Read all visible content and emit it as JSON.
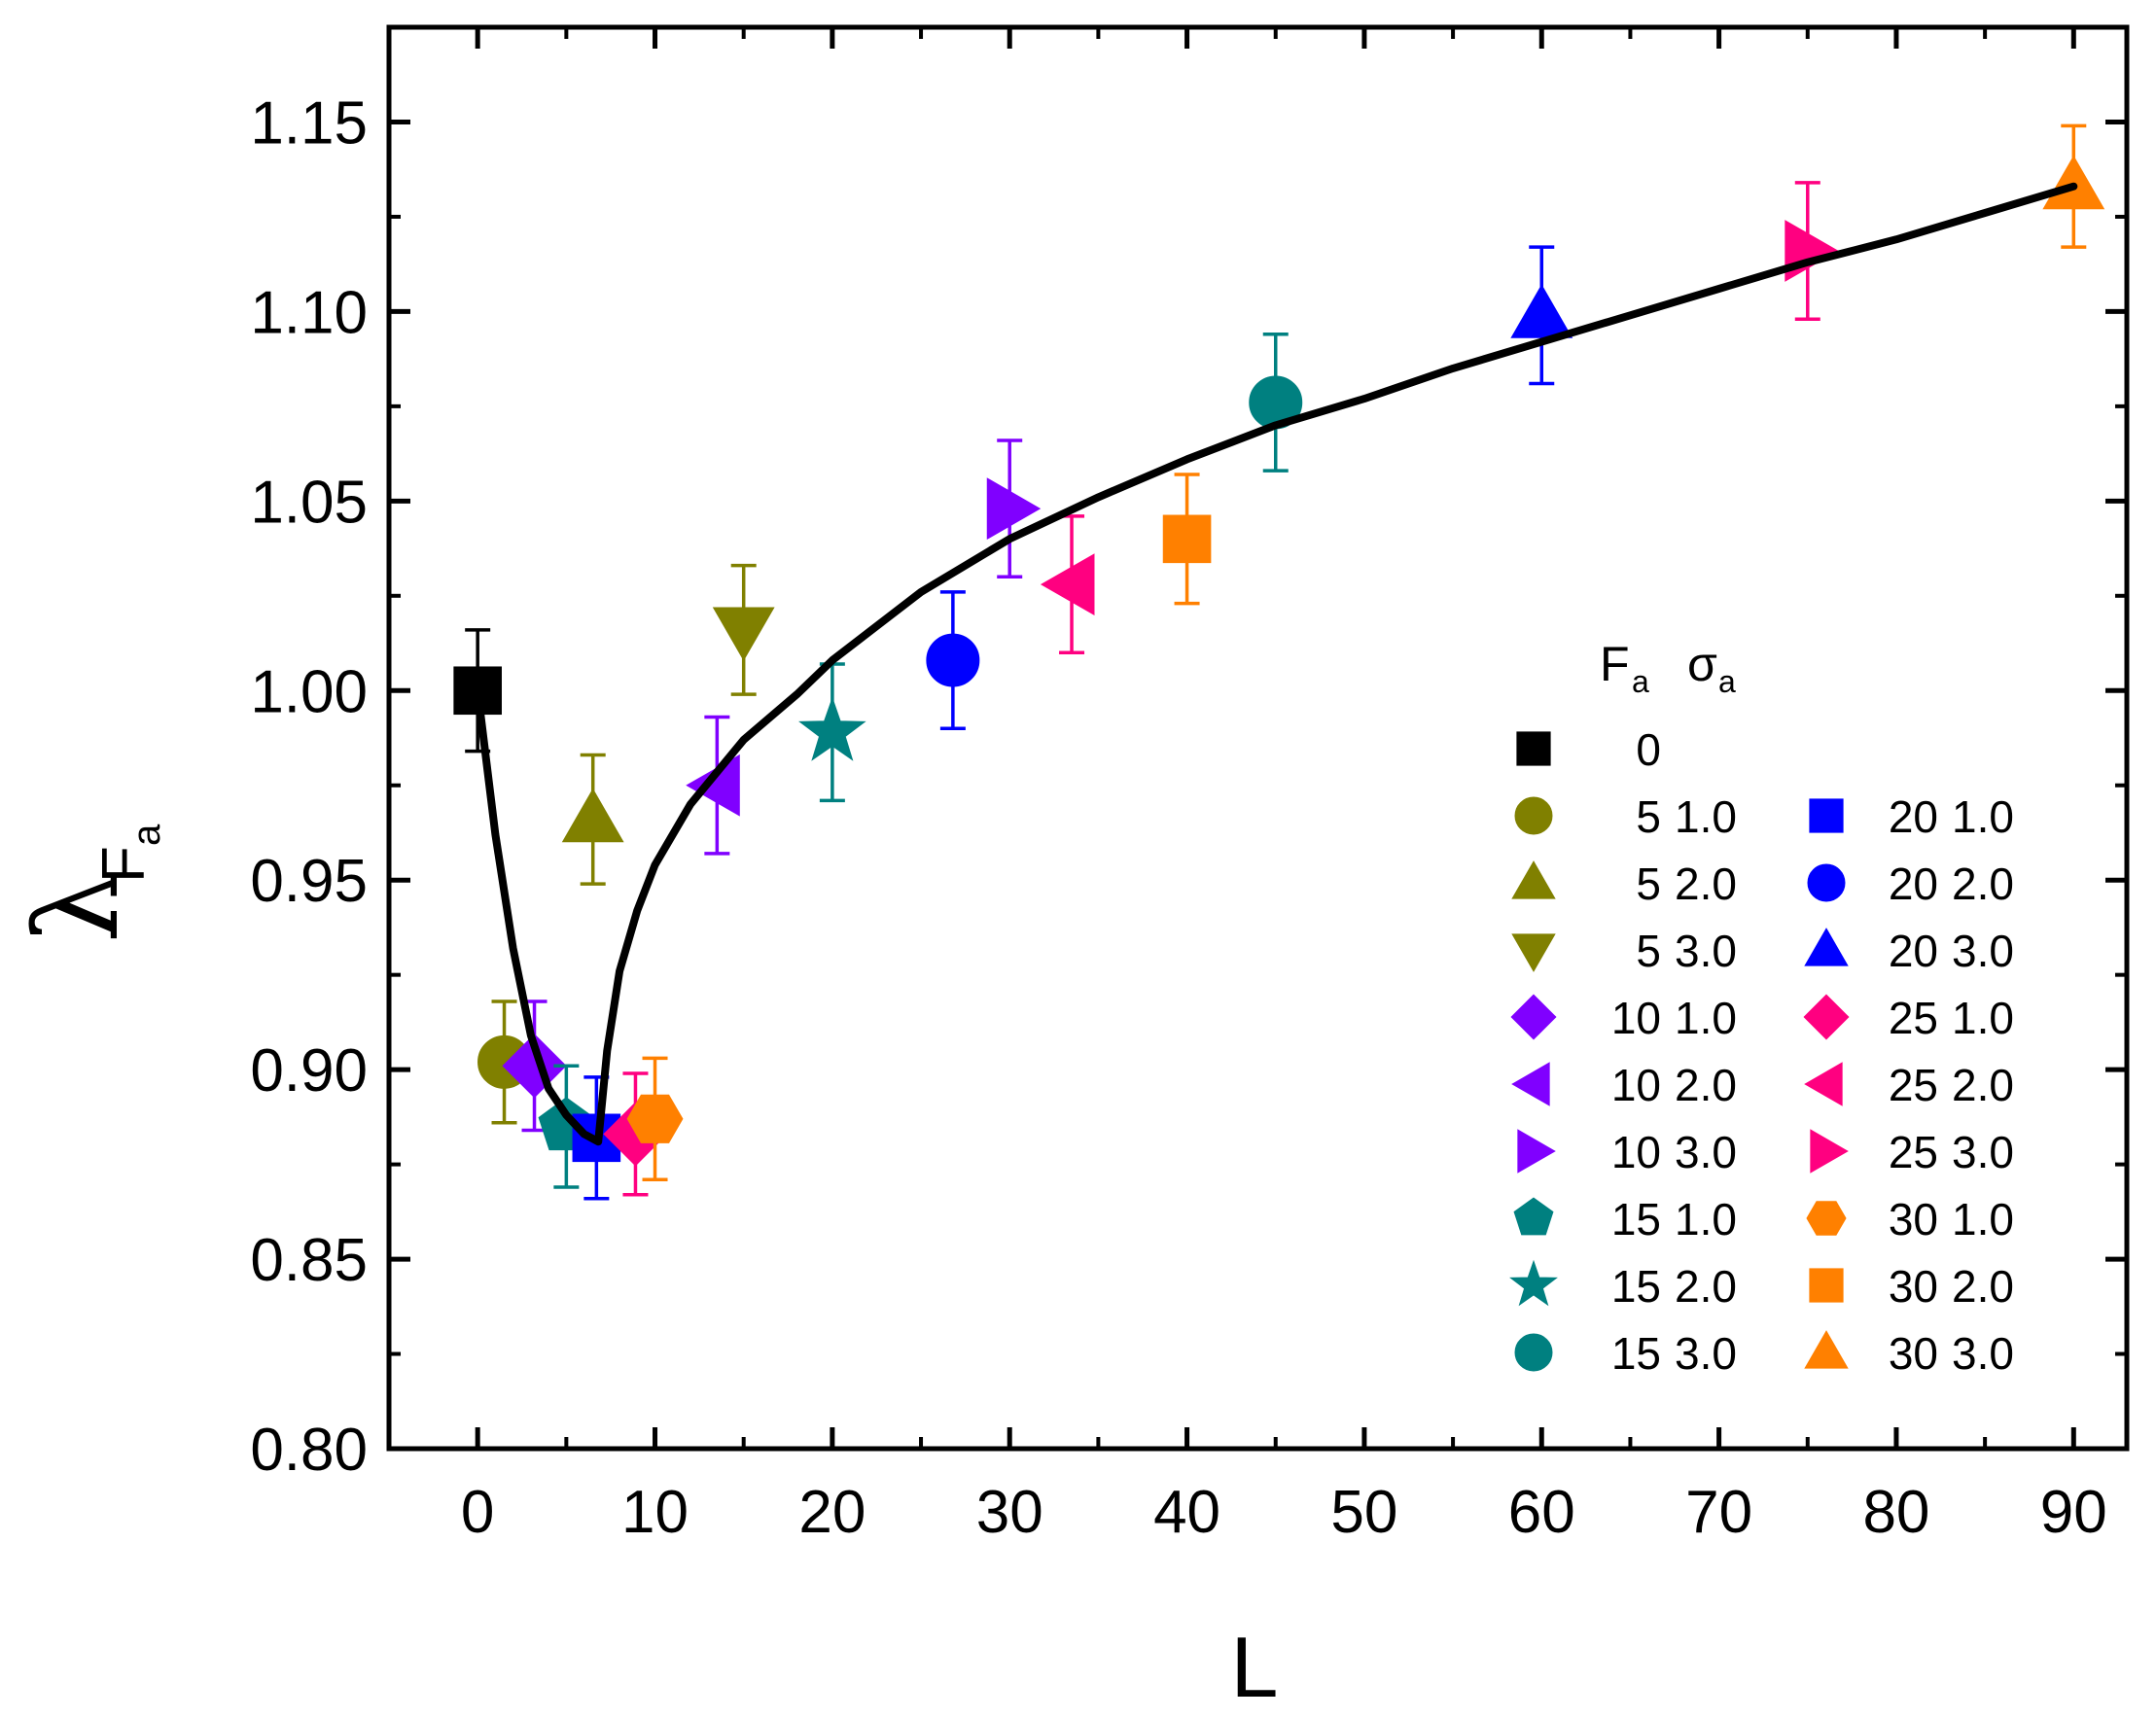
{
  "chart_data": {
    "type": "scatter",
    "xlabel": "L",
    "ylabel": "λ",
    "ylabel_sub": "F",
    "ylabel_subsub": "a",
    "xlim": [
      -5,
      93
    ],
    "ylim": [
      0.8,
      1.175
    ],
    "x_ticks": [
      0,
      10,
      20,
      30,
      40,
      50,
      60,
      70,
      80,
      90
    ],
    "x_tick_labels": [
      "0",
      "10",
      "20",
      "30",
      "40",
      "50",
      "60",
      "70",
      "80",
      "90"
    ],
    "y_ticks": [
      0.8,
      0.85,
      0.9,
      0.95,
      1.0,
      1.05,
      1.1,
      1.15
    ],
    "y_tick_labels": [
      "0.80",
      "0.85",
      "0.90",
      "0.95",
      "1.00",
      "1.05",
      "1.10",
      "1.15"
    ],
    "legend_position": "right",
    "legend_header": {
      "fa": "F",
      "fa_sub": "a",
      "sigma": "σ",
      "sigma_sub": "a"
    },
    "colors": {
      "black": "#000000",
      "olive": "#808000",
      "violet": "#8000ff",
      "teal": "#008080",
      "blue": "#0000ff",
      "pink": "#ff0080",
      "orange": "#ff8000"
    },
    "series": [
      {
        "fa": "0",
        "sigma": "",
        "marker": "square",
        "color": "#000000",
        "x": 0,
        "y": 1.0,
        "err": 0.016
      },
      {
        "fa": "5",
        "sigma": "1.0",
        "marker": "circle",
        "color": "#808000",
        "x": 1.5,
        "y": 0.902,
        "err": 0.016
      },
      {
        "fa": "5",
        "sigma": "2.0",
        "marker": "triangle-up",
        "color": "#808000",
        "x": 6.5,
        "y": 0.966,
        "err": 0.017
      },
      {
        "fa": "5",
        "sigma": "3.0",
        "marker": "triangle-down",
        "color": "#808000",
        "x": 15,
        "y": 1.016,
        "err": 0.017
      },
      {
        "fa": "10",
        "sigma": "1.0",
        "marker": "diamond",
        "color": "#8000ff",
        "x": 3.2,
        "y": 0.901,
        "err": 0.017
      },
      {
        "fa": "10",
        "sigma": "2.0",
        "marker": "triangle-left",
        "color": "#8000ff",
        "x": 13.5,
        "y": 0.975,
        "err": 0.018
      },
      {
        "fa": "10",
        "sigma": "3.0",
        "marker": "triangle-right",
        "color": "#8000ff",
        "x": 30,
        "y": 1.048,
        "err": 0.018
      },
      {
        "fa": "15",
        "sigma": "1.0",
        "marker": "pentagon",
        "color": "#008080",
        "x": 5,
        "y": 0.885,
        "err": 0.016
      },
      {
        "fa": "15",
        "sigma": "2.0",
        "marker": "star",
        "color": "#008080",
        "x": 20,
        "y": 0.989,
        "err": 0.018
      },
      {
        "fa": "15",
        "sigma": "3.0",
        "marker": "circle",
        "color": "#008080",
        "x": 45,
        "y": 1.076,
        "err": 0.018
      },
      {
        "fa": "20",
        "sigma": "1.0",
        "marker": "square",
        "color": "#0000ff",
        "x": 6.7,
        "y": 0.882,
        "err": 0.016
      },
      {
        "fa": "20",
        "sigma": "2.0",
        "marker": "circle",
        "color": "#0000ff",
        "x": 26.8,
        "y": 1.008,
        "err": 0.018
      },
      {
        "fa": "20",
        "sigma": "3.0",
        "marker": "triangle-up",
        "color": "#0000ff",
        "x": 60,
        "y": 1.099,
        "err": 0.018
      },
      {
        "fa": "25",
        "sigma": "1.0",
        "marker": "diamond",
        "color": "#ff0080",
        "x": 8.9,
        "y": 0.883,
        "err": 0.016
      },
      {
        "fa": "25",
        "sigma": "2.0",
        "marker": "triangle-left",
        "color": "#ff0080",
        "x": 33.5,
        "y": 1.028,
        "err": 0.018
      },
      {
        "fa": "25",
        "sigma": "3.0",
        "marker": "triangle-right",
        "color": "#ff0080",
        "x": 75,
        "y": 1.116,
        "err": 0.018
      },
      {
        "fa": "30",
        "sigma": "1.0",
        "marker": "hexagon",
        "color": "#ff8000",
        "x": 10,
        "y": 0.887,
        "err": 0.016
      },
      {
        "fa": "30",
        "sigma": "2.0",
        "marker": "square",
        "color": "#ff8000",
        "x": 40,
        "y": 1.04,
        "err": 0.017
      },
      {
        "fa": "30",
        "sigma": "3.0",
        "marker": "triangle-up",
        "color": "#ff8000",
        "x": 90,
        "y": 1.133,
        "err": 0.016
      }
    ],
    "fit_curve": {
      "color": "#000000",
      "points": [
        [
          0,
          1.0
        ],
        [
          1,
          0.962
        ],
        [
          2,
          0.932
        ],
        [
          3,
          0.909
        ],
        [
          4,
          0.895
        ],
        [
          5,
          0.888
        ],
        [
          6,
          0.883
        ],
        [
          6.8,
          0.881
        ],
        [
          7.3,
          0.905
        ],
        [
          8,
          0.926
        ],
        [
          9,
          0.942
        ],
        [
          10,
          0.954
        ],
        [
          12,
          0.97
        ],
        [
          15,
          0.987
        ],
        [
          18,
          0.999
        ],
        [
          20,
          1.008
        ],
        [
          25,
          1.026
        ],
        [
          30,
          1.04
        ],
        [
          35,
          1.051
        ],
        [
          40,
          1.061
        ],
        [
          45,
          1.07
        ],
        [
          50,
          1.077
        ],
        [
          55,
          1.085
        ],
        [
          60,
          1.092
        ],
        [
          65,
          1.099
        ],
        [
          70,
          1.106
        ],
        [
          75,
          1.113
        ],
        [
          80,
          1.119
        ],
        [
          85,
          1.126
        ],
        [
          90,
          1.133
        ]
      ]
    }
  }
}
